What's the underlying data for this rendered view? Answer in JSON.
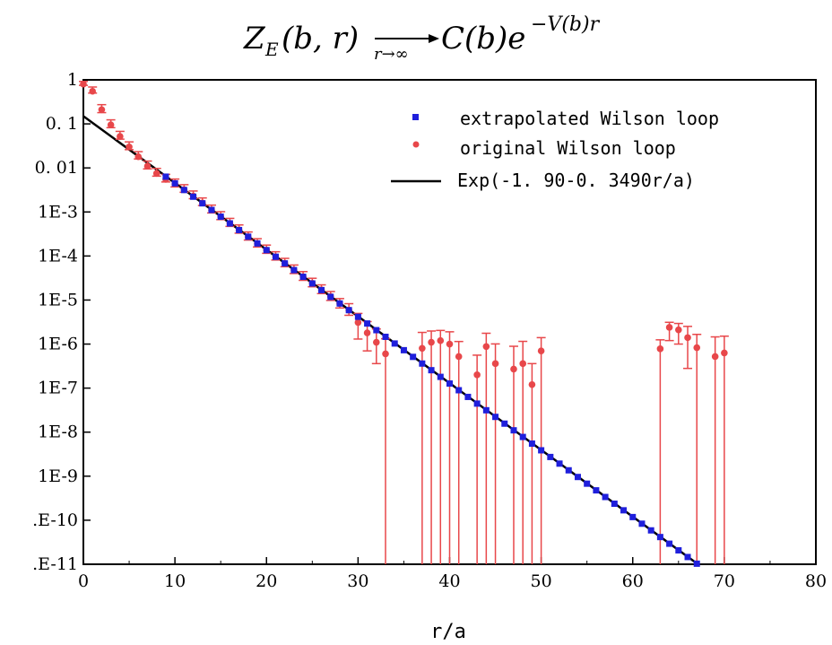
{
  "chart_data": {
    "type": "scatter",
    "title_formula": {
      "lhs": "Z",
      "lhs_sub": "E",
      "lhs_args": "(b, r)",
      "limit_sub": "r→∞",
      "rhs": "C(b)e",
      "exponent": "−V(b)r"
    },
    "xlabel": "r/a",
    "ylabel": "",
    "xlim": [
      0,
      80
    ],
    "ylim_log10": [
      -11,
      0
    ],
    "y_scale": "log",
    "x_ticks": [
      0,
      10,
      20,
      30,
      40,
      50,
      60,
      70,
      80
    ],
    "x_tick_labels": [
      "0",
      "10",
      "20",
      "30",
      "40",
      "50",
      "60",
      "70",
      "80"
    ],
    "y_tick_labels": [
      "1",
      "0. 1",
      "0. 01",
      "1E-3",
      "1E-4",
      "1E-5",
      "1E-6",
      "1E-7",
      "1E-8",
      "1E-9",
      ".E-10",
      ".E-11"
    ],
    "legend_position": "top-right",
    "grid": false,
    "series": [
      {
        "name": "extrapolated Wilson loop",
        "marker": "square",
        "color": "#1f1fdc",
        "fit_intercept": -1.9,
        "fit_slope": -0.349,
        "x": [
          9,
          10,
          11,
          12,
          13,
          14,
          15,
          16,
          17,
          18,
          19,
          20,
          21,
          22,
          23,
          24,
          25,
          26,
          27,
          28,
          29,
          30,
          31,
          32,
          33,
          34,
          35,
          36,
          37,
          38,
          39,
          40,
          41,
          42,
          43,
          44,
          45,
          46,
          47,
          48,
          49,
          50,
          51,
          52,
          53,
          54,
          55,
          56,
          57,
          58,
          59,
          60,
          61,
          62,
          63,
          64,
          65,
          66,
          67
        ],
        "y": [
          0.00633,
          0.00446,
          0.00315,
          0.00222,
          0.00157,
          0.00111,
          0.00078,
          0.00055,
          0.000388,
          0.000274,
          0.000193,
          0.000136,
          9.61e-05,
          6.78e-05,
          4.78e-05,
          3.37e-05,
          2.38e-05,
          1.68e-05,
          1.18e-05,
          8.35e-06,
          5.89e-06,
          4.16e-06,
          2.93e-06,
          2.07e-06,
          1.46e-06,
          1.03e-06,
          7.26e-07,
          5.12e-07,
          3.61e-07,
          2.55e-07,
          1.8e-07,
          1.27e-07,
          8.95e-08,
          6.31e-08,
          4.45e-08,
          3.14e-08,
          2.22e-08,
          1.56e-08,
          1.1e-08,
          7.78e-09,
          5.49e-09,
          3.87e-09,
          2.73e-09,
          1.93e-09,
          1.36e-09,
          9.59e-10,
          6.76e-10,
          4.77e-10,
          3.37e-10,
          2.37e-10,
          1.68e-10,
          1.18e-10,
          8.34e-11,
          5.88e-11,
          4.15e-11,
          2.93e-11,
          2.07e-11,
          1.46e-11,
          1.03e-11
        ]
      },
      {
        "name": "original Wilson loop",
        "marker": "circle",
        "color": "#e8474a",
        "x": [
          0,
          1,
          2,
          3,
          4,
          5,
          6,
          7,
          8,
          9,
          10,
          11,
          12,
          13,
          14,
          15,
          16,
          17,
          18,
          19,
          20,
          21,
          22,
          23,
          24,
          25,
          26,
          27,
          28,
          29,
          30,
          31,
          32,
          33,
          37,
          38,
          39,
          40,
          41,
          43,
          44,
          45,
          47,
          48,
          49,
          50,
          63,
          64,
          65,
          66,
          67,
          69,
          70
        ],
        "y": [
          0.8,
          0.55,
          0.21,
          0.095,
          0.052,
          0.03,
          0.018,
          0.011,
          0.0075,
          0.0055,
          0.0043,
          0.0032,
          0.0023,
          0.0016,
          0.0011,
          0.00078,
          0.00055,
          0.00039,
          0.00027,
          0.00019,
          0.000136,
          9.6e-05,
          6.8e-05,
          4.8e-05,
          3.4e-05,
          2.4e-05,
          1.7e-05,
          1.2e-05,
          8.3e-06,
          5.9e-06,
          3.1e-06,
          1.8e-06,
          1.1e-06,
          6e-07,
          8e-07,
          1.1e-06,
          1.2e-06,
          1e-06,
          5.2e-07,
          2e-07,
          8.8e-07,
          3.6e-07,
          2.7e-07,
          3.6e-07,
          1.2e-07,
          7e-07,
          7.8e-07,
          2.4e-06,
          2.1e-06,
          1.4e-06,
          8.3e-07,
          5.2e-07,
          6.3e-07
        ],
        "err_lo": [
          1e-11,
          1e-11,
          1e-11,
          1e-11,
          1e-11,
          1e-11,
          1e-11,
          1e-11,
          1e-11,
          1e-11,
          1e-11,
          1e-11,
          1e-11,
          1e-11,
          1e-11,
          1e-11,
          1e-11,
          1e-11,
          1e-11,
          1e-11,
          1e-11,
          1e-11,
          1e-11,
          1e-11,
          1e-11,
          1e-11,
          1e-11,
          1e-11,
          1e-11,
          1e-11,
          1e-11,
          1e-11,
          1e-11,
          1e-11,
          1e-11,
          1e-11,
          1e-11,
          1e-11,
          1e-11,
          1e-11,
          1e-11,
          1e-11,
          1e-11,
          1e-11,
          1e-11,
          1e-11,
          1e-11,
          1e-11,
          1e-11,
          1e-11,
          1e-11,
          1e-11,
          1e-11
        ],
        "err_hi_factor": [
          1.15,
          1.25,
          1.3,
          1.3,
          1.3,
          1.3,
          1.3,
          1.3,
          1.3,
          1.3,
          1.3,
          1.3,
          1.3,
          1.3,
          1.3,
          1.3,
          1.3,
          1.3,
          1.3,
          1.3,
          1.3,
          1.3,
          1.3,
          1.3,
          1.3,
          1.3,
          1.3,
          1.3,
          1.3,
          1.4,
          1.6,
          1.8,
          2.0,
          2.2,
          2.3,
          1.8,
          1.7,
          1.9,
          2.2,
          2.8,
          2.0,
          2.8,
          3.3,
          3.2,
          3.0,
          2.0,
          1.6,
          1.3,
          1.4,
          1.8,
          2.0,
          2.8,
          2.4
        ],
        "err_lo_visible": [
          0.75,
          0.5,
          0.18,
          0.082,
          0.045,
          0.026,
          0.016,
          0.0095,
          0.0065,
          0.0048,
          0.0037,
          0.0028,
          0.002,
          0.0014,
          0.00095,
          0.00067,
          0.00047,
          0.00033,
          0.00023,
          0.00016,
          0.000115,
          8.1e-05,
          5.7e-05,
          4e-05,
          2.8e-05,
          2e-05,
          1.4e-05,
          9.8e-06,
          6.6e-06,
          4.5e-06,
          1.3e-06,
          7e-07,
          3.6e-07,
          1e-11,
          1e-11,
          1e-11,
          1e-11,
          1e-11,
          1e-11,
          1e-11,
          1e-11,
          1e-11,
          1e-11,
          1e-11,
          1e-11,
          1e-11,
          1e-11,
          1.2e-06,
          1e-06,
          2.8e-07,
          1e-11,
          1e-11,
          1e-11
        ]
      },
      {
        "name": "Exp(-1. 90-0. 3490r/a)",
        "marker": "line",
        "color": "#000000",
        "intercept": -1.9,
        "slope": -0.349
      }
    ]
  }
}
